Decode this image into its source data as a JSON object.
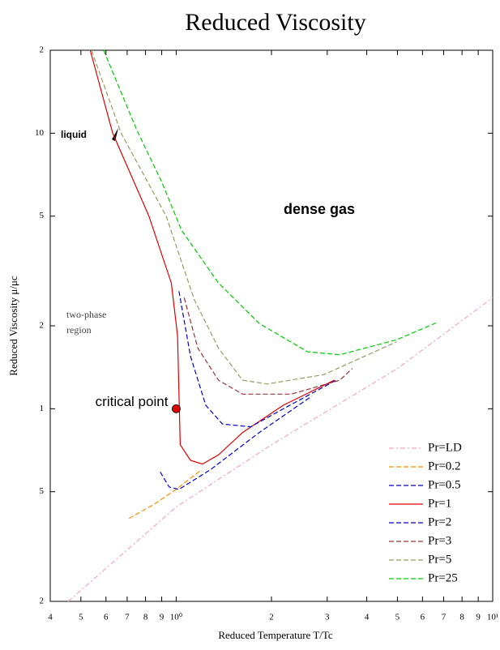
{
  "chart_data": {
    "type": "line",
    "title": "Reduced Viscosity",
    "xlabel": "Reduced Temperature T/Tc",
    "ylabel": "Reduced Viscosity μ/μc",
    "xscale": "log",
    "yscale": "log",
    "xlim": [
      0.4,
      10
    ],
    "ylim": [
      0.2,
      20
    ],
    "xticks": [
      {
        "value": 0.4,
        "label": "4"
      },
      {
        "value": 0.5,
        "label": "5"
      },
      {
        "value": 0.6,
        "label": "6"
      },
      {
        "value": 0.7,
        "label": "7"
      },
      {
        "value": 0.8,
        "label": "8"
      },
      {
        "value": 0.9,
        "label": "9"
      },
      {
        "value": 1,
        "label": "10⁰"
      },
      2,
      3,
      4,
      5,
      6,
      7,
      8,
      9,
      {
        "value": 10,
        "label": "10¹"
      }
    ],
    "yticks": [
      {
        "value": 0.2,
        "label": "2"
      },
      {
        "value": 0.5,
        "label": "5"
      },
      1,
      2,
      5,
      10,
      {
        "value": 20,
        "label": "2"
      }
    ],
    "legend": "lower right",
    "series": [
      {
        "name": "Pr=LD",
        "color": "#f4a6b8",
        "style": "dashdot",
        "x": [
          0.456,
          1,
          2,
          5,
          10
        ],
        "values": [
          0.2,
          0.44,
          0.74,
          1.4,
          2.53
        ]
      },
      {
        "name": "Pr=0.2",
        "color": "#ff8c00",
        "style": "dashed",
        "x": [
          0.71,
          0.85,
          1,
          1.2
        ],
        "values": [
          0.4,
          0.45,
          0.51,
          0.6
        ]
      },
      {
        "name": "Pr=0.5",
        "color": "#0000cc",
        "style": "dashed",
        "x": [
          0.89,
          0.95,
          1.02,
          1.28,
          1.83,
          2.68
        ],
        "values": [
          0.59,
          0.52,
          0.51,
          0.6,
          0.82,
          1.11
        ]
      },
      {
        "name": "Pr=1",
        "color": "#dd0000",
        "style": "solid",
        "x": [
          0.535,
          0.63,
          0.82,
          0.965,
          1.01,
          1.03,
          1.11,
          1.21,
          1.36,
          1.62,
          2.18,
          3.16
        ],
        "values": [
          20,
          10,
          5,
          2.86,
          1.84,
          0.74,
          0.65,
          0.63,
          0.68,
          0.82,
          1.03,
          1.27
        ]
      },
      {
        "name": "Pr=2",
        "color": "#0000cc",
        "style": "dashed",
        "x": [
          1.02,
          1.11,
          1.24,
          1.4,
          1.72,
          2.18,
          3.2
        ],
        "values": [
          2.67,
          1.55,
          1.03,
          0.88,
          0.86,
          1.0,
          1.27
        ]
      },
      {
        "name": "Pr=3",
        "color": "#993333",
        "style": "dashed",
        "x": [
          1.06,
          1.17,
          1.36,
          1.62,
          2.31,
          3.29,
          3.6
        ],
        "values": [
          2.53,
          1.66,
          1.27,
          1.13,
          1.13,
          1.27,
          1.4
        ]
      },
      {
        "name": "Pr=5",
        "color": "#999966",
        "style": "dashed",
        "x": [
          0.54,
          0.67,
          0.93,
          1.14,
          1.36,
          1.62,
          1.94,
          2.93,
          4.97
        ],
        "values": [
          20,
          10,
          5,
          2.49,
          1.66,
          1.27,
          1.23,
          1.33,
          1.75
        ]
      },
      {
        "name": "Pr=25",
        "color": "#00cc00",
        "style": "dashed",
        "x": [
          0.59,
          0.75,
          0.9,
          1.04,
          1.36,
          1.83,
          2.6,
          3.29,
          4.97,
          6.7
        ],
        "values": [
          20,
          10.3,
          6.65,
          4.44,
          2.86,
          2.04,
          1.61,
          1.57,
          1.78,
          2.06
        ]
      }
    ],
    "markers": [
      {
        "label": "critical point",
        "x": 1,
        "y": 1,
        "color": "#dd0000"
      }
    ],
    "annotations": [
      "liquid",
      "dense gas",
      "two-phase",
      "region"
    ]
  }
}
